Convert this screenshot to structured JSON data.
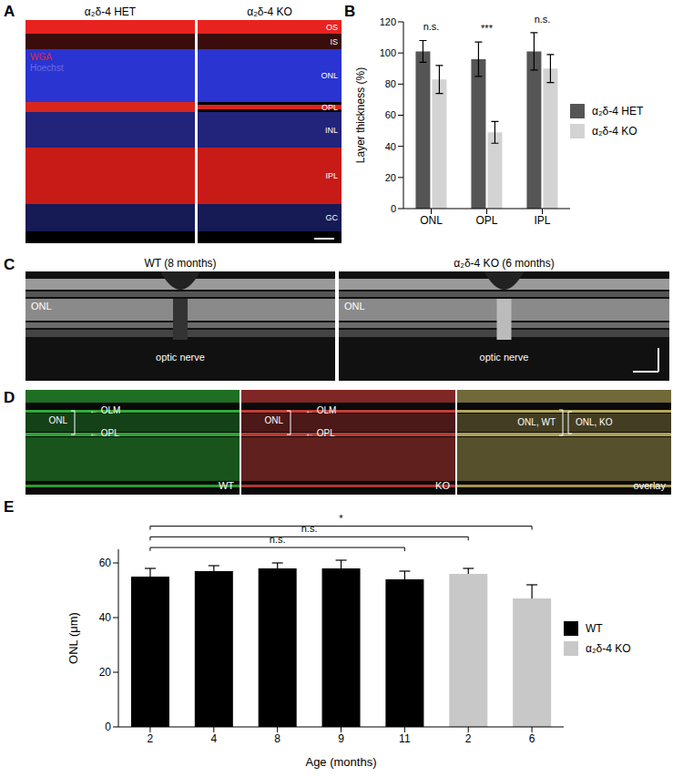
{
  "panel_labels": [
    "A",
    "B",
    "C",
    "D",
    "E"
  ],
  "panel_A": {
    "columns": [
      "α₂δ-4 HET",
      "α₂δ-4 KO"
    ],
    "stains": [
      {
        "name": "WGA",
        "color": "#e8231f"
      },
      {
        "name": "Hoechst",
        "color": "#6a6ae8"
      }
    ],
    "layers": [
      "OS",
      "IS",
      "ONL",
      "OPL",
      "INL",
      "IPL",
      "GC"
    ]
  },
  "panel_C": {
    "titles": [
      "WT (8 months)",
      "α₂δ-4 KO (6 months)"
    ],
    "layer": "ONL",
    "landmark": "optic nerve"
  },
  "panel_D": {
    "images": [
      {
        "name": "WT",
        "color": "#2fc23a"
      },
      {
        "name": "KO",
        "color": "#e0403a"
      },
      {
        "name": "overlay",
        "color": "#c9b860"
      }
    ],
    "layer": "ONL",
    "top_label": "OLM",
    "bottom_label": "OPL",
    "overlay_labels": [
      "ONL, WT",
      "ONL, KO"
    ]
  },
  "chart_data": [
    {
      "type": "bar",
      "categories": [
        "ONL",
        "OPL",
        "IPL"
      ],
      "ylabel": "Layer thickness (%)",
      "ylim": [
        0,
        120
      ],
      "yticks": [
        0,
        20,
        40,
        60,
        80,
        100,
        120
      ],
      "series": [
        {
          "name": "α₂δ-4 HET",
          "color": "#555555",
          "values": [
            101,
            96,
            101
          ],
          "errors": [
            7,
            11,
            12
          ]
        },
        {
          "name": "α₂δ-4 KO",
          "color": "#d3d3d3",
          "values": [
            83,
            49,
            90
          ],
          "errors": [
            9,
            7,
            9
          ]
        }
      ],
      "annotations": [
        "n.s.",
        "***",
        "n.s."
      ],
      "legend": "right"
    },
    {
      "type": "bar",
      "categories": [
        "2",
        "4",
        "8",
        "9",
        "11",
        "2",
        "6"
      ],
      "xlabel": "Age (months)",
      "ylabel": "ONL (μm)",
      "ylim": [
        0,
        65
      ],
      "yticks": [
        0,
        20,
        40,
        60
      ],
      "series": [
        {
          "name": "WT",
          "color": "#000000",
          "values": [
            55,
            57,
            58,
            58,
            54,
            null,
            null
          ],
          "errors": [
            3,
            2,
            2,
            3,
            3,
            null,
            null
          ]
        },
        {
          "name": "α₂δ-4 KO",
          "color": "#c8c8c8",
          "values": [
            null,
            null,
            null,
            null,
            null,
            56,
            47
          ],
          "errors": [
            null,
            null,
            null,
            null,
            null,
            2,
            5
          ]
        }
      ],
      "comparisons": [
        {
          "from": 0,
          "to": 4,
          "label": "n.s."
        },
        {
          "from": 0,
          "to": 5,
          "label": "n.s."
        },
        {
          "from": 0,
          "to": 6,
          "label": "*"
        }
      ],
      "legend": "right"
    }
  ]
}
